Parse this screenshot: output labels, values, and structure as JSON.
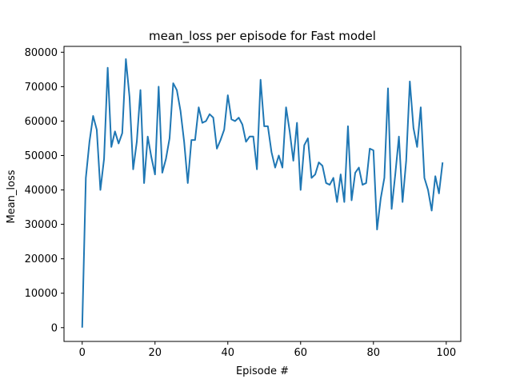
{
  "chart_data": {
    "type": "line",
    "title": "mean_loss per episode for Fast model",
    "xlabel": "Episode #",
    "ylabel": "Mean_loss",
    "xlim": [
      -5,
      104
    ],
    "ylim": [
      -4000,
      81700
    ],
    "x_ticks": [
      0,
      20,
      40,
      60,
      80,
      100
    ],
    "y_ticks": [
      0,
      10000,
      20000,
      30000,
      40000,
      50000,
      60000,
      70000,
      80000
    ],
    "x_tick_labels": [
      "0",
      "20",
      "40",
      "60",
      "80",
      "100"
    ],
    "y_tick_labels": [
      "0",
      "10000",
      "20000",
      "30000",
      "40000",
      "50000",
      "60000",
      "70000",
      "80000"
    ],
    "grid": false,
    "series": [
      {
        "color": "#1f77b4",
        "x": [
          0,
          1,
          2,
          3,
          4,
          5,
          6,
          7,
          8,
          9,
          10,
          11,
          12,
          13,
          14,
          15,
          16,
          17,
          18,
          19,
          20,
          21,
          22,
          23,
          24,
          25,
          26,
          27,
          28,
          29,
          30,
          31,
          32,
          33,
          34,
          35,
          36,
          37,
          38,
          39,
          40,
          41,
          42,
          43,
          44,
          45,
          46,
          47,
          48,
          49,
          50,
          51,
          52,
          53,
          54,
          55,
          56,
          57,
          58,
          59,
          60,
          61,
          62,
          63,
          64,
          65,
          66,
          67,
          68,
          69,
          70,
          71,
          72,
          73,
          74,
          75,
          76,
          77,
          78,
          79,
          80,
          81,
          82,
          83,
          84,
          85,
          86,
          87,
          88,
          89,
          90,
          91,
          92,
          93,
          94,
          95,
          96,
          97,
          98,
          99
        ],
        "values": [
          0,
          43500,
          54000,
          61500,
          57500,
          40000,
          49000,
          75500,
          52500,
          57000,
          53500,
          56500,
          78000,
          67000,
          46000,
          54000,
          69000,
          42000,
          55500,
          49500,
          44500,
          70000,
          45000,
          49000,
          55000,
          71000,
          69000,
          63000,
          54000,
          42000,
          54500,
          54500,
          64000,
          59500,
          60000,
          62000,
          61000,
          52000,
          54500,
          57500,
          67500,
          60500,
          60000,
          61000,
          59000,
          54000,
          55500,
          55500,
          46000,
          72000,
          58500,
          58500,
          51000,
          46500,
          50000,
          46500,
          64000,
          57000,
          48500,
          59500,
          40000,
          53000,
          55000,
          43500,
          44500,
          48000,
          47000,
          42000,
          41500,
          43500,
          36500,
          44500,
          36500,
          58500,
          37000,
          45000,
          46500,
          41500,
          42000,
          52000,
          51500,
          28500,
          37500,
          43500,
          69500,
          34500,
          44500,
          55500,
          36500,
          48500,
          71500,
          58000,
          52500,
          64000,
          43500,
          40000,
          34000,
          44000,
          39000,
          48000
        ]
      }
    ]
  }
}
